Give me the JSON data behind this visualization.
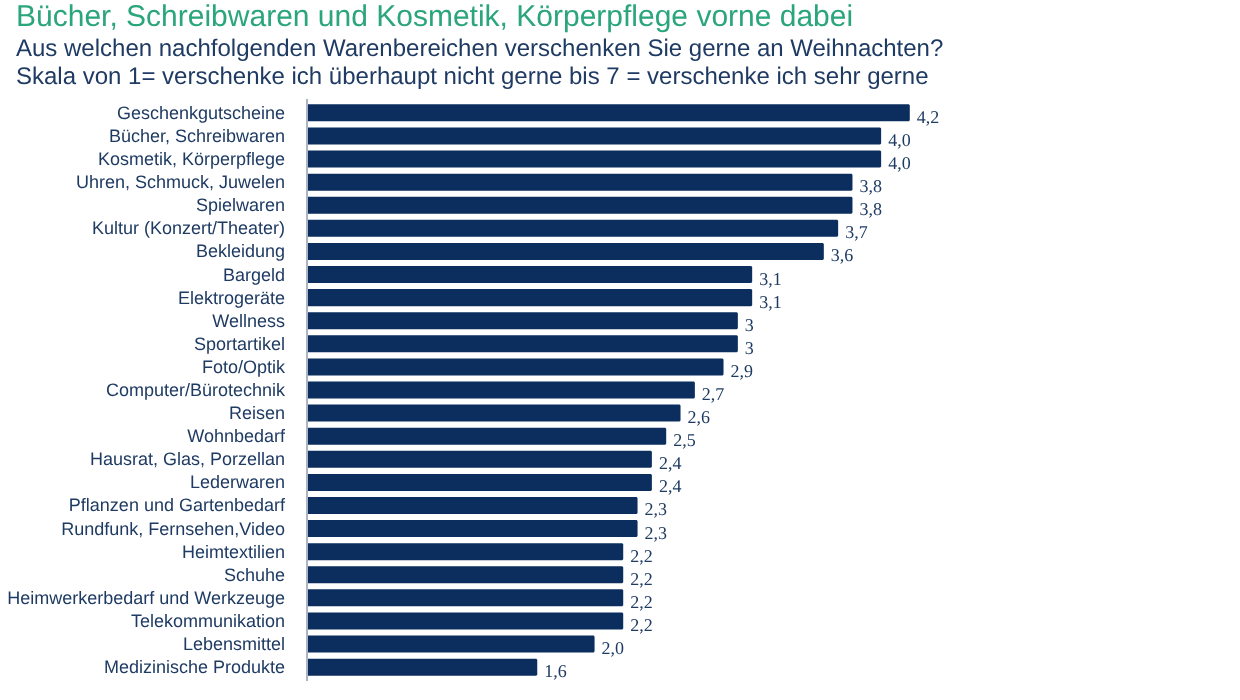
{
  "chart_data": {
    "type": "bar",
    "orientation": "horizontal",
    "title": "Bücher, Schreibwaren und Kosmetik, Körperpflege vorne dabei",
    "subtitle": "Aus welchen nachfolgenden Warenbereichen verschenken Sie gerne an Weihnachten?\nSkala von 1= verschenke ich überhaupt nicht gerne bis 7 = verschenke ich sehr gerne",
    "categories": [
      "Geschenkgutscheine",
      "Bücher, Schreibwaren",
      "Kosmetik, Körperpflege",
      "Uhren, Schmuck, Juwelen",
      "Spielwaren",
      "Kultur (Konzert/Theater)",
      "Bekleidung",
      "Bargeld",
      "Elektrogeräte",
      "Wellness",
      "Sportartikel",
      "Foto/Optik",
      "Computer/Bürotechnik",
      "Reisen",
      "Wohnbedarf",
      "Hausrat, Glas, Porzellan",
      "Lederwaren",
      "Pflanzen und Gartenbedarf",
      "Rundfunk, Fernsehen,Video",
      "Heimtextilien",
      "Schuhe",
      "Heimwerkerbedarf und Werkzeuge",
      "Telekommunikation",
      "Lebensmittel",
      "Medizinische Produkte"
    ],
    "values": [
      4.2,
      4.0,
      4.0,
      3.8,
      3.8,
      3.7,
      3.6,
      3.1,
      3.1,
      3,
      3,
      2.9,
      2.7,
      2.6,
      2.5,
      2.4,
      2.4,
      2.3,
      2.3,
      2.2,
      2.2,
      2.2,
      2.2,
      2.0,
      1.6
    ],
    "value_labels": [
      "4,2",
      "4,0",
      "4,0",
      "3,8",
      "3,8",
      "3,7",
      "3,6",
      "3,1",
      "3,1",
      "3",
      "3",
      "2,9",
      "2,7",
      "2,6",
      "2,5",
      "2,4",
      "2,4",
      "2,3",
      "2,3",
      "2,2",
      "2,2",
      "2,2",
      "2,2",
      "2,0",
      "1,6"
    ],
    "color": "#0b2e5e",
    "grid": false
  }
}
